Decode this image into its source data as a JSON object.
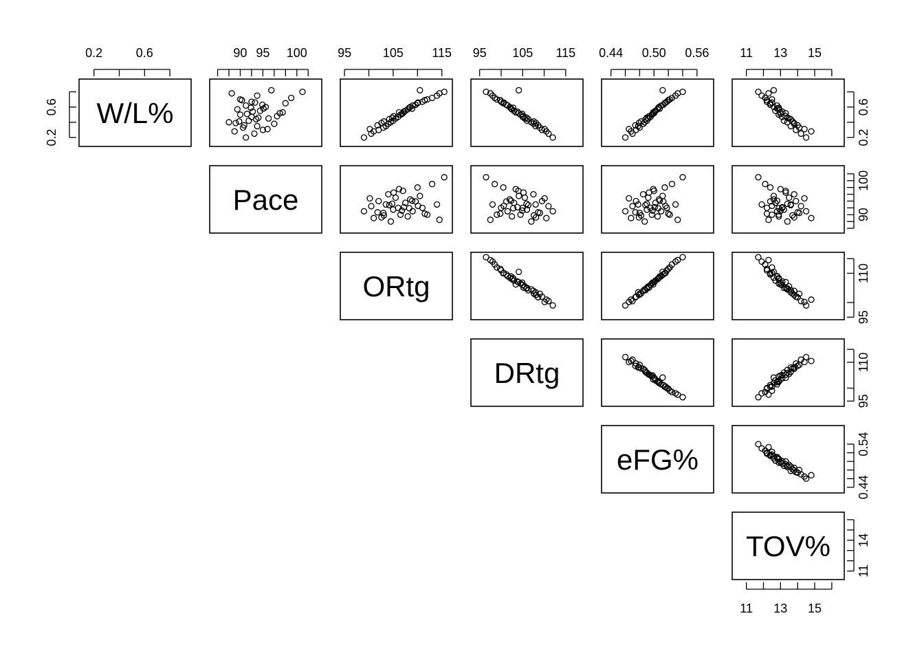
{
  "chart_data": {
    "type": "scatter",
    "variables": [
      {
        "name": "W/L%",
        "lim": [
          0.1,
          0.95
        ],
        "ticks": [
          0.2,
          0.4,
          0.6,
          0.8
        ],
        "tick_labels": [
          "0.2",
          "",
          "0.6",
          ""
        ]
      },
      {
        "name": "Pace",
        "lim": [
          85.0,
          104.0
        ],
        "ticks": [
          86,
          88,
          90,
          92,
          94,
          96,
          98,
          100,
          102
        ],
        "tick_labels": [
          "",
          "",
          "90",
          "",
          "95",
          "",
          "",
          "100",
          ""
        ]
      },
      {
        "name": "ORtg",
        "lim": [
          94.6,
          116.7
        ],
        "ticks": [
          95,
          100,
          105,
          110,
          115
        ],
        "tick_labels": [
          "95",
          "",
          "105",
          "",
          "115"
        ]
      },
      {
        "name": "DRtg",
        "lim": [
          93.5,
          118.5
        ],
        "ticks": [
          95,
          100,
          105,
          110,
          115
        ],
        "tick_labels": [
          "95",
          "",
          "105",
          "",
          "115"
        ]
      },
      {
        "name": "eFG%",
        "lim": [
          0.43,
          0.58
        ],
        "ticks": [
          0.44,
          0.46,
          0.48,
          0.5,
          0.52,
          0.54,
          0.56
        ],
        "tick_labels": [
          "0.44",
          "",
          "",
          "0.50",
          "",
          "",
          "0.56"
        ]
      },
      {
        "name": "TOV%",
        "lim": [
          10.3,
          16.6
        ],
        "ticks": [
          11,
          12,
          13,
          14,
          15,
          16
        ],
        "tick_labels": [
          "11",
          "",
          "13",
          "",
          "15",
          ""
        ]
      }
    ],
    "panel_tick_labels": {
      "0": [
        "0.2",
        "",
        "0.6",
        ""
      ],
      "1": [
        "",
        "",
        "90",
        "",
        "95",
        "",
        "",
        "100",
        ""
      ],
      "1r": [
        "",
        "",
        "90",
        "",
        "",
        "",
        "",
        "100",
        ""
      ],
      "2r": [
        "95",
        "",
        "110",
        ""
      ],
      "3r": [
        "95",
        "",
        "110",
        ""
      ],
      "4r": [
        "0.44",
        "",
        "",
        "",
        "",
        "0.54"
      ],
      "5r": [
        "11",
        "",
        "",
        "14",
        "",
        ""
      ]
    },
    "points": {
      "W/L%": [
        0.2,
        0.25,
        0.28,
        0.3,
        0.33,
        0.35,
        0.38,
        0.4,
        0.42,
        0.45,
        0.47,
        0.5,
        0.52,
        0.55,
        0.57,
        0.6,
        0.62,
        0.65,
        0.67,
        0.7,
        0.72,
        0.75,
        0.78,
        0.8,
        0.82,
        0.44,
        0.51,
        0.58,
        0.36,
        0.63,
        0.41,
        0.54,
        0.48,
        0.69,
        0.31,
        0.59,
        0.46,
        0.53,
        0.39,
        0.66
      ],
      "Pace": [
        91,
        92.5,
        89,
        94,
        90.5,
        93,
        96,
        88,
        91.5,
        95,
        92,
        90,
        97,
        93.5,
        89.5,
        94.5,
        91,
        98,
        92,
        90,
        99,
        93,
        88.5,
        101,
        95.5,
        92.8,
        91.2,
        94.1,
        90.7,
        93.9,
        89.8,
        92.2,
        96.5,
        90.3,
        94.8,
        91.9,
        93.2,
        97.5,
        89.2,
        92.6
      ],
      "ORtg": [
        99,
        100.5,
        101,
        102,
        103,
        103.5,
        104,
        104.5,
        105,
        105.5,
        106,
        106.5,
        107,
        107.5,
        108,
        108.5,
        109,
        110,
        111,
        112,
        113,
        114,
        114.5,
        115.5,
        110.5,
        104.2,
        106.8,
        108.9,
        101.8,
        109.6,
        103.1,
        107.2,
        105.1,
        111.5,
        100.2,
        108.3,
        104.8,
        106.2,
        102.6,
        110.1
      ],
      "DRtg": [
        112,
        111,
        110.5,
        109.5,
        109,
        108,
        107.5,
        107,
        106,
        105.5,
        105,
        104.5,
        104,
        103,
        102.5,
        102,
        101.5,
        100.5,
        100,
        99,
        98.5,
        98,
        97.5,
        96.5,
        104.1,
        106.3,
        104.9,
        102.3,
        108.6,
        101.2,
        107.6,
        103.8,
        105.2,
        99.8,
        110.1,
        102.8,
        105.9,
        103.4,
        108.1,
        100.6
      ],
      "eFG%": [
        0.46,
        0.47,
        0.468,
        0.475,
        0.48,
        0.478,
        0.485,
        0.487,
        0.49,
        0.492,
        0.495,
        0.497,
        0.5,
        0.502,
        0.505,
        0.507,
        0.51,
        0.515,
        0.518,
        0.522,
        0.525,
        0.53,
        0.533,
        0.54,
        0.512,
        0.488,
        0.498,
        0.508,
        0.474,
        0.513,
        0.482,
        0.501,
        0.493,
        0.52,
        0.465,
        0.506,
        0.49,
        0.499,
        0.479,
        0.516
      ],
      "TOV%": [
        14.5,
        14.2,
        14.8,
        13.9,
        14.1,
        13.6,
        13.8,
        13.4,
        13.2,
        13.5,
        13.1,
        12.9,
        13.3,
        12.7,
        12.9,
        12.6,
        12.8,
        12.4,
        12.2,
        12.5,
        12.1,
        11.9,
        12.3,
        11.7,
        12.6,
        13.6,
        13.0,
        12.8,
        14.0,
        12.4,
        13.7,
        13.1,
        13.3,
        12.2,
        14.4,
        12.9,
        13.4,
        13.0,
        13.8,
        12.5
      ]
    }
  }
}
